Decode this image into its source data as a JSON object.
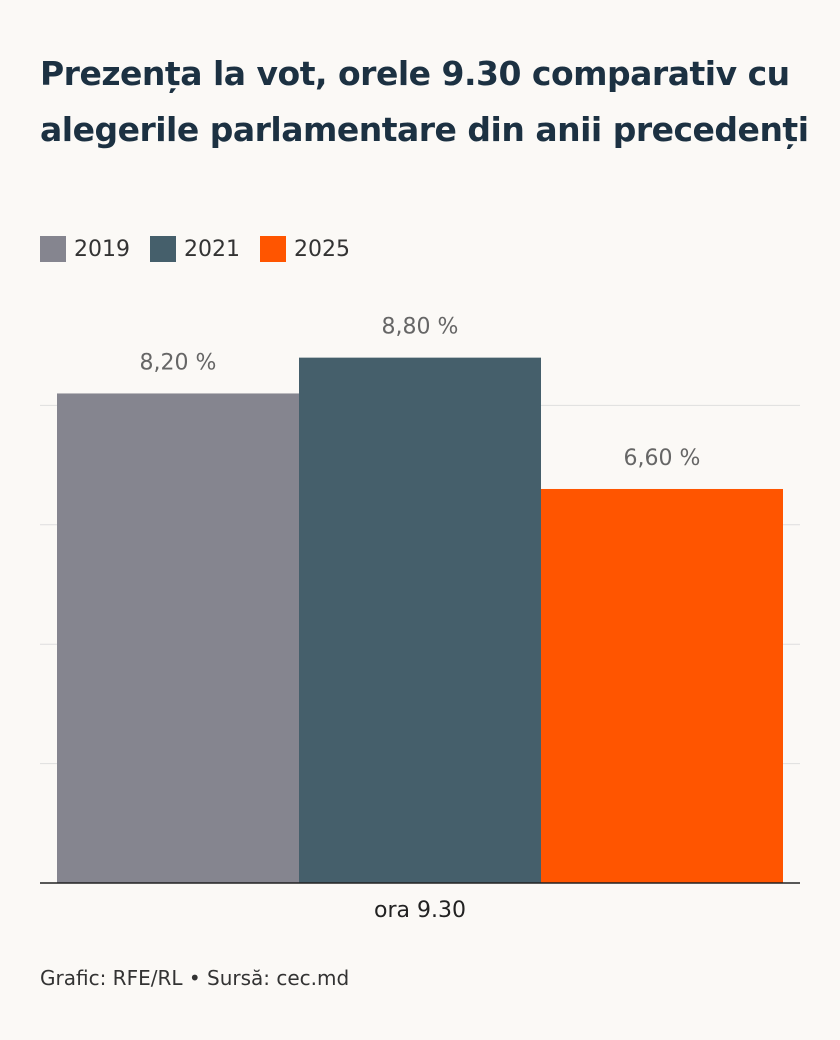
{
  "chart_data": {
    "type": "bar",
    "title": "Prezența la vot, orele 9.30 comparativ cu alegerile parlamentare din anii precedenți",
    "categories": [
      "ora 9.30"
    ],
    "series": [
      {
        "name": "2019",
        "color": "#85858f",
        "values": [
          8.2
        ],
        "value_labels": [
          "8,20 %"
        ]
      },
      {
        "name": "2021",
        "color": "#455f6b",
        "values": [
          8.8
        ],
        "value_labels": [
          "8,80 %"
        ]
      },
      {
        "name": "2025",
        "color": "#ff5500",
        "values": [
          6.6
        ],
        "value_labels": [
          "6,60 %"
        ]
      }
    ],
    "ylim": [
      0,
      10
    ],
    "yticks": [
      0,
      2,
      4,
      6,
      8
    ],
    "grid": true,
    "show_tick_labels": false,
    "source": "Grafic: RFE/RL • Sursă: cec.md"
  }
}
